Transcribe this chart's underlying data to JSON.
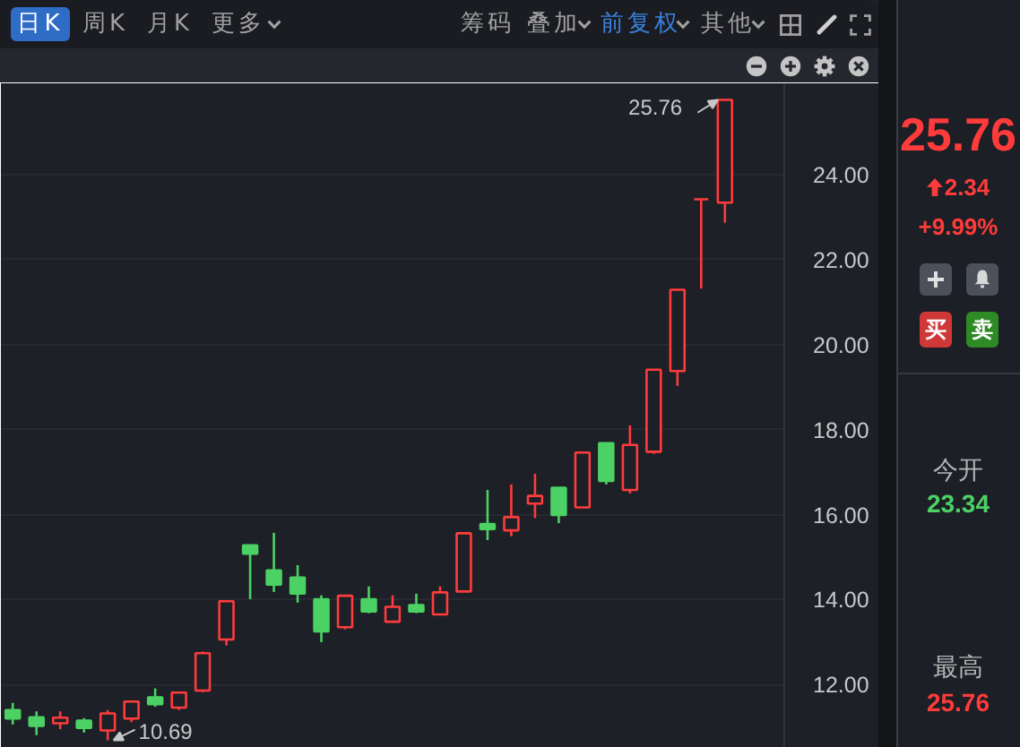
{
  "chart_data": {
    "type": "candlestick",
    "categories": [
      null,
      null,
      null,
      null,
      null,
      null,
      null,
      null,
      null,
      null,
      null,
      null,
      null,
      null,
      null,
      null,
      null,
      null,
      null,
      null,
      null,
      null,
      null,
      null,
      null,
      null,
      null,
      null,
      null,
      null,
      null,
      null,
      null
    ],
    "ohlc": [
      [
        11.4,
        11.57,
        11.06,
        11.2
      ],
      [
        11.23,
        11.37,
        10.81,
        11.03
      ],
      [
        11.09,
        11.37,
        10.95,
        11.22
      ],
      [
        11.15,
        11.21,
        10.87,
        10.98
      ],
      [
        10.92,
        11.4,
        10.69,
        11.32
      ],
      [
        11.2,
        11.6,
        11.12,
        11.6
      ],
      [
        11.7,
        11.91,
        11.48,
        11.54
      ],
      [
        11.46,
        11.81,
        11.4,
        11.81
      ],
      [
        11.86,
        12.78,
        11.82,
        12.74
      ],
      [
        13.06,
        13.96,
        12.92,
        13.96
      ],
      [
        15.28,
        15.28,
        14.01,
        15.08
      ],
      [
        14.69,
        15.57,
        14.18,
        14.35
      ],
      [
        14.52,
        14.81,
        13.93,
        14.14
      ],
      [
        14.01,
        14.1,
        13.0,
        13.25
      ],
      [
        13.35,
        14.09,
        13.3,
        14.09
      ],
      [
        14.01,
        14.31,
        13.68,
        13.72
      ],
      [
        13.48,
        14.1,
        13.48,
        13.83
      ],
      [
        13.87,
        14.14,
        13.68,
        13.72
      ],
      [
        13.65,
        14.31,
        13.65,
        14.17
      ],
      [
        14.19,
        15.56,
        14.19,
        15.56
      ],
      [
        15.78,
        16.58,
        15.4,
        15.66
      ],
      [
        15.63,
        16.71,
        15.49,
        15.94
      ],
      [
        16.26,
        16.96,
        15.92,
        16.44
      ],
      [
        16.63,
        16.63,
        15.8,
        15.99
      ],
      [
        16.17,
        17.46,
        16.17,
        17.46
      ],
      [
        17.68,
        17.68,
        16.71,
        16.79
      ],
      [
        16.58,
        18.1,
        16.5,
        17.64
      ],
      [
        17.48,
        19.41,
        17.43,
        19.41
      ],
      [
        19.38,
        21.29,
        19.03,
        21.29
      ],
      [
        23.42,
        23.42,
        21.32,
        23.42
      ],
      [
        23.34,
        25.76,
        22.87,
        25.76
      ],
      null,
      null
    ],
    "colors": [
      "#4cd264",
      "#4cd264",
      "#ff3b3b",
      "#4cd264",
      "#ff3b3b",
      "#ff3b3b",
      "#4cd264",
      "#ff3b3b",
      "#ff3b3b",
      "#ff3b3b",
      "#4cd264",
      "#4cd264",
      "#4cd264",
      "#4cd264",
      "#ff3b3b",
      "#4cd264",
      "#ff3b3b",
      "#4cd264",
      "#ff3b3b",
      "#ff3b3b",
      "#4cd264",
      "#ff3b3b",
      "#ff3b3b",
      "#4cd264",
      "#ff3b3b",
      "#4cd264",
      "#ff3b3b",
      "#ff3b3b",
      "#ff3b3b",
      "#ff3b3b",
      "#ff3b3b",
      null,
      null
    ],
    "ylim": [
      10.51,
      26.15
    ],
    "yticks": [
      {
        "value": 12,
        "label": "12.00"
      },
      {
        "value": 14,
        "label": "14.00"
      },
      {
        "value": 16,
        "label": "16.00"
      },
      {
        "value": 18,
        "label": "18.00"
      },
      {
        "value": 20,
        "label": "20.00"
      },
      {
        "value": 22,
        "label": "22.00"
      },
      {
        "value": 24,
        "label": "24.00"
      }
    ],
    "grid": "y",
    "tick_labels": "y",
    "annotations": [
      "日K",
      "周K",
      "月K",
      "更多",
      "筹码",
      "叠加",
      "前复权",
      "其他",
      "25.76",
      "10.69",
      "25.76",
      "2.34",
      "+9.99%",
      "买",
      "卖",
      "今开",
      "23.34",
      "最高",
      "25.76"
    ]
  }
}
